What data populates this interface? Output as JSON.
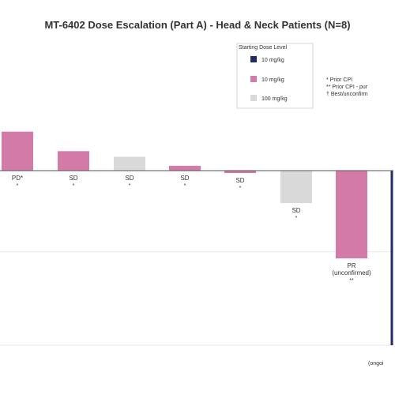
{
  "chart_data": {
    "type": "bar",
    "title": "MT-6402 Dose Escalation (Part A) - Head & Neck Patients (N=8)",
    "legend": {
      "title": "Starting Dose Level",
      "entries": [
        {
          "label": "10 mg/kg",
          "color": "#1f2d6b"
        },
        {
          "label": "10 mg/kg",
          "color": "#d27aa8"
        },
        {
          "label": "100 mg/kg",
          "color": "#d9d9d9"
        }
      ],
      "placement": "top-right"
    },
    "notes": [
      "* Prior CPI",
      "** Prior CPI - pur",
      "† Best/unconfirm"
    ],
    "categories": [
      "PD*",
      "SD",
      "SD",
      "SD",
      "SD",
      "SD",
      "PR (unconfirmed)",
      ""
    ],
    "values": [
      48,
      24,
      17,
      6,
      -3,
      -40,
      -108,
      -215
    ],
    "colors": [
      "#d27aa8",
      "#d27aa8",
      "#d9d9d9",
      "#d27aa8",
      "#d27aa8",
      "#d9d9d9",
      "#d27aa8",
      "#1f2d6b"
    ],
    "markers": [
      "*",
      "*",
      "*",
      "*",
      "*",
      "*",
      "**",
      ""
    ],
    "ylim": [
      -215,
      80
    ],
    "grid": true,
    "right_note": "(ongoi"
  }
}
